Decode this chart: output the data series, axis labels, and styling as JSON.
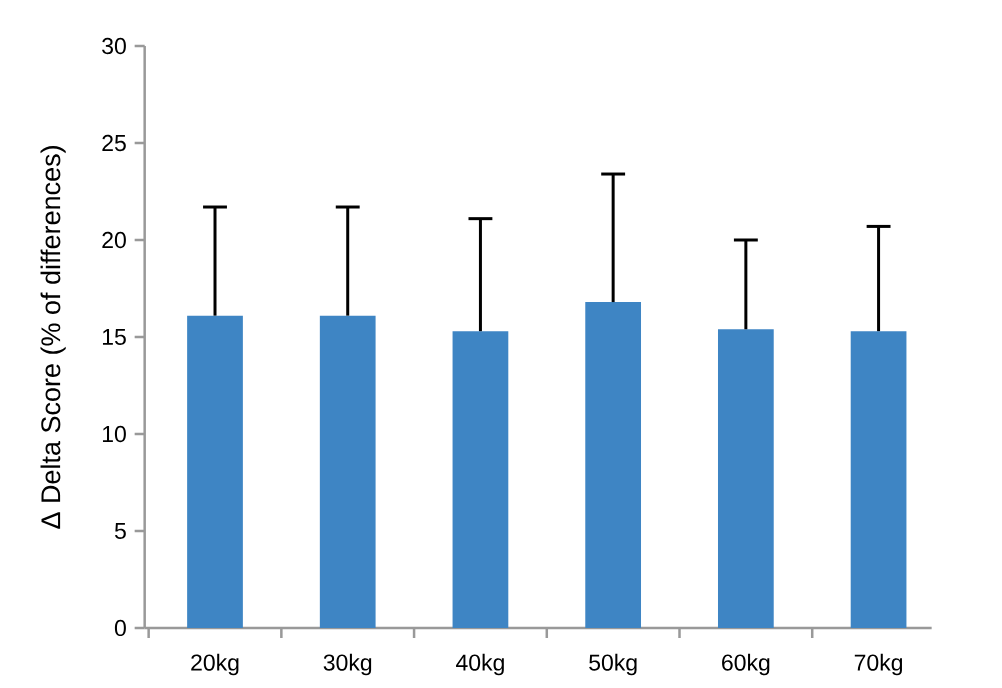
{
  "chart_data": {
    "type": "bar",
    "ylabel": "Δ Delta Score (% of differences)",
    "categories": [
      "20kg",
      "30kg",
      "40kg",
      "50kg",
      "60kg",
      "70kg"
    ],
    "values": [
      16.1,
      16.1,
      15.3,
      16.8,
      15.4,
      15.3
    ],
    "errors": [
      [
        16.1,
        21.7
      ],
      [
        16.1,
        21.7
      ],
      [
        15.3,
        21.1
      ],
      [
        16.8,
        23.4
      ],
      [
        15.4,
        20.0
      ],
      [
        15.3,
        20.7
      ]
    ],
    "color": "#3e85c4",
    "ylim": [
      0,
      30
    ],
    "yticks": [
      0,
      5,
      10,
      15,
      20,
      25,
      30
    ]
  }
}
